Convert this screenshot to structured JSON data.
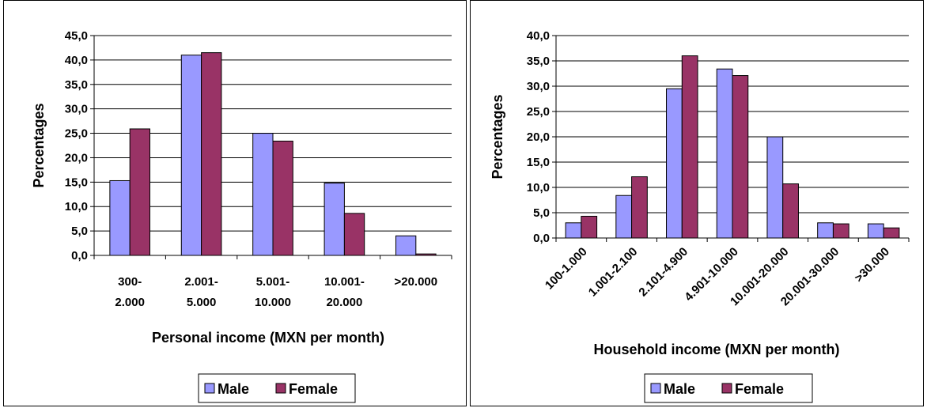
{
  "chart_data": [
    {
      "type": "bar",
      "categories": [
        "300-\n2.000",
        "2.001-\n5.000",
        "5.001-\n10.000",
        "10.001-\n20.000",
        ">20.000"
      ],
      "series": [
        {
          "name": "Male",
          "values": [
            15.3,
            41.0,
            25.0,
            14.8,
            4.0
          ]
        },
        {
          "name": "Female",
          "values": [
            25.9,
            41.5,
            23.4,
            8.6,
            0.3
          ]
        }
      ],
      "yticks": [
        "0,0",
        "5,0",
        "10,0",
        "15,0",
        "20,0",
        "25,0",
        "30,0",
        "35,0",
        "40,0",
        "45,0"
      ],
      "ylim": [
        0,
        45
      ],
      "xlabel": "Personal income (MXN per month)",
      "ylabel": "Percentages",
      "grid": true,
      "legend": "bottom"
    },
    {
      "type": "bar",
      "categories": [
        "100-1.000",
        "1.001-2.100",
        "2.101-4.900",
        "4.901-10.000",
        "10.001-20.000",
        "20.001-30.000",
        ">30.000"
      ],
      "series": [
        {
          "name": "Male",
          "values": [
            3.0,
            8.4,
            29.5,
            33.4,
            20.0,
            3.0,
            2.8
          ]
        },
        {
          "name": "Female",
          "values": [
            4.3,
            12.1,
            36.0,
            32.1,
            10.7,
            2.8,
            2.0
          ]
        }
      ],
      "yticks": [
        "0,0",
        "5,0",
        "10,0",
        "15,0",
        "20,0",
        "25,0",
        "30,0",
        "35,0",
        "40,0"
      ],
      "ylim": [
        0,
        40
      ],
      "xlabel": "Household income (MXN per month)",
      "ylabel": "Percentages",
      "grid": true,
      "legend": "bottom"
    }
  ],
  "colors": {
    "male": "#9999ff",
    "female": "#993366"
  }
}
